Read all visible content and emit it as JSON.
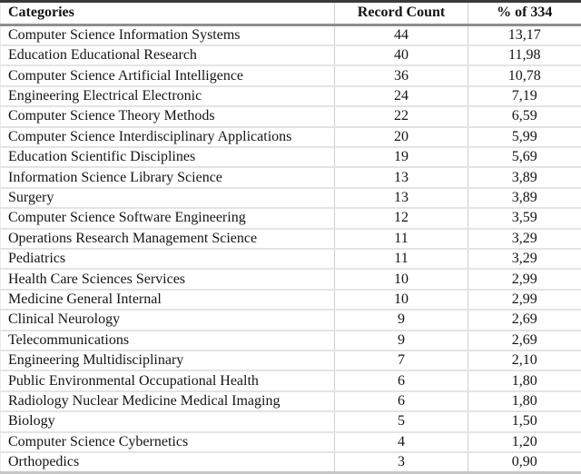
{
  "table": {
    "columns": [
      {
        "label": "Categories"
      },
      {
        "label": "Record Count"
      },
      {
        "label": "% of 334"
      }
    ],
    "rows": [
      {
        "category": "Computer Science Information Systems",
        "count": "44",
        "percent": "13,17"
      },
      {
        "category": "Education Educational Research",
        "count": "40",
        "percent": "11,98"
      },
      {
        "category": "Computer Science Artificial Intelligence",
        "count": "36",
        "percent": "10,78"
      },
      {
        "category": "Engineering Electrical Electronic",
        "count": "24",
        "percent": "7,19"
      },
      {
        "category": "Computer Science Theory Methods",
        "count": "22",
        "percent": "6,59"
      },
      {
        "category": "Computer Science Interdisciplinary Applications",
        "count": "20",
        "percent": "5,99"
      },
      {
        "category": "Education Scientific Disciplines",
        "count": "19",
        "percent": "5,69"
      },
      {
        "category": "Information Science Library Science",
        "count": "13",
        "percent": "3,89"
      },
      {
        "category": "Surgery",
        "count": "13",
        "percent": "3,89"
      },
      {
        "category": "Computer Science Software Engineering",
        "count": "12",
        "percent": "3,59"
      },
      {
        "category": "Operations Research Management Science",
        "count": "11",
        "percent": "3,29"
      },
      {
        "category": "Pediatrics",
        "count": "11",
        "percent": "3,29"
      },
      {
        "category": "Health Care Sciences Services",
        "count": "10",
        "percent": "2,99"
      },
      {
        "category": "Medicine General Internal",
        "count": "10",
        "percent": "2,99"
      },
      {
        "category": "Clinical Neurology",
        "count": "9",
        "percent": "2,69"
      },
      {
        "category": "Telecommunications",
        "count": "9",
        "percent": "2,69"
      },
      {
        "category": "Engineering Multidisciplinary",
        "count": "7",
        "percent": "2,10"
      },
      {
        "category": "Public Environmental Occupational Health",
        "count": "6",
        "percent": "1,80"
      },
      {
        "category": "Radiology Nuclear Medicine Medical Imaging",
        "count": "6",
        "percent": "1,80"
      },
      {
        "category": "Biology",
        "count": "5",
        "percent": "1,50"
      },
      {
        "category": "Computer Science Cybernetics",
        "count": "4",
        "percent": "1,20"
      },
      {
        "category": "Orthopedics",
        "count": "3",
        "percent": "0,90"
      }
    ]
  },
  "colors": {
    "text": "#141414",
    "rule_dark": "#3a3a3a",
    "rule_header": "#8f8f8f",
    "rule_light": "#e4e4e4",
    "background": "#ffffff"
  }
}
